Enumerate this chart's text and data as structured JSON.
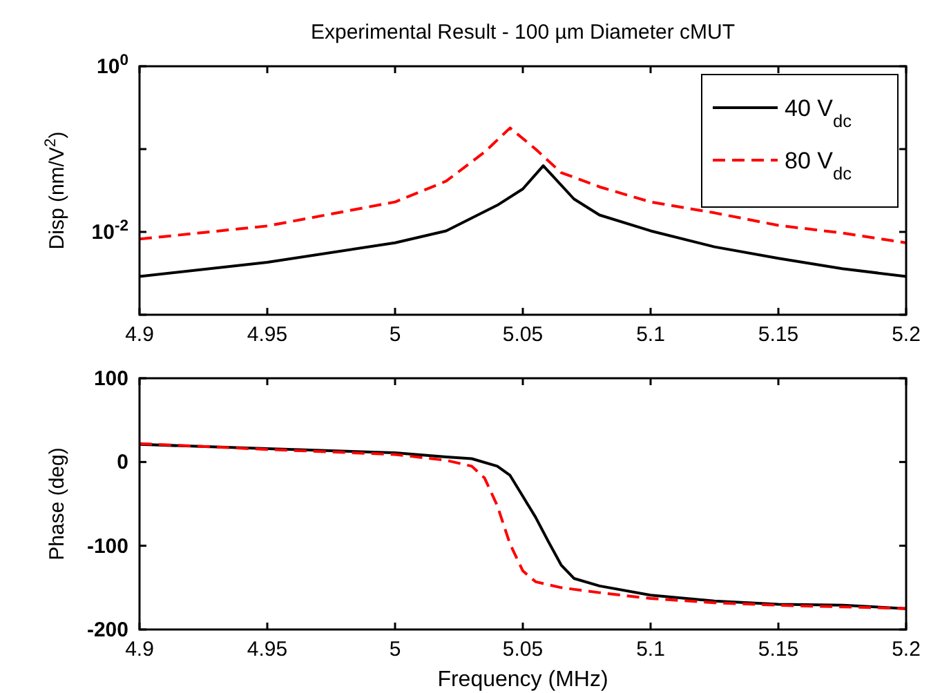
{
  "chart_data": [
    {
      "type": "line",
      "title": "Experimental Result - 100 µm Diameter cMUT",
      "ylabel": "Disp (nm/V$^{2}$)",
      "log": "y",
      "legend": "top right",
      "xlim": [
        4.9,
        5.2
      ],
      "xticks": [
        4.9,
        4.95,
        5,
        5.05,
        5.1,
        5.15,
        5.2
      ],
      "ylim": [
        0.001,
        1
      ],
      "yticks": [
        {
          "value": 1,
          "label": "10$^{0}$"
        },
        {
          "value": 0.1,
          "label": null
        },
        {
          "value": 0.01,
          "label": "10$^{-2}$"
        },
        {
          "value": 0.001,
          "label": null
        }
      ],
      "series": [
        {
          "name": "40 V$_{dc}$",
          "color": "#000000",
          "line_style": "solid",
          "x": [
            4.9,
            4.95,
            5.0,
            5.02,
            5.04,
            5.05,
            5.058,
            5.07,
            5.08,
            5.1,
            5.125,
            5.15,
            5.175,
            5.2
          ],
          "values": [
            0.0029,
            0.0043,
            0.0074,
            0.0103,
            0.021,
            0.033,
            0.063,
            0.025,
            0.016,
            0.0103,
            0.0066,
            0.0048,
            0.0036,
            0.0029
          ]
        },
        {
          "name": "80 V$_{dc}$",
          "color": "#ff0000",
          "line_style": "dashed",
          "x": [
            4.9,
            4.95,
            5.0,
            5.02,
            5.035,
            5.045,
            5.055,
            5.065,
            5.08,
            5.1,
            5.125,
            5.15,
            5.175,
            5.2
          ],
          "values": [
            0.0082,
            0.0118,
            0.023,
            0.041,
            0.092,
            0.18,
            0.1,
            0.052,
            0.035,
            0.023,
            0.017,
            0.012,
            0.0097,
            0.0074
          ]
        }
      ]
    },
    {
      "type": "line",
      "xlabel": "Frequency (MHz)",
      "ylabel": "Phase (deg)",
      "xlim": [
        4.9,
        5.2
      ],
      "xticks": [
        4.9,
        4.95,
        5,
        5.05,
        5.1,
        5.15,
        5.2
      ],
      "ylim": [
        -200,
        100
      ],
      "yticks": [
        -200,
        -100,
        0,
        100
      ],
      "series": [
        {
          "color": "#000000",
          "line_style": "solid",
          "x": [
            4.9,
            4.95,
            5.0,
            5.02,
            5.03,
            5.04,
            5.045,
            5.05,
            5.055,
            5.06,
            5.065,
            5.07,
            5.08,
            5.1,
            5.125,
            5.15,
            5.175,
            5.2
          ],
          "values": [
            21,
            16,
            11,
            6,
            4,
            -5,
            -16,
            -41,
            -66,
            -95,
            -123,
            -139,
            -148,
            -159,
            -166,
            -170,
            -171,
            -175
          ]
        },
        {
          "color": "#ff0000",
          "line_style": "dashed",
          "x": [
            4.9,
            4.95,
            5.0,
            5.02,
            5.03,
            5.035,
            5.04,
            5.045,
            5.05,
            5.055,
            5.065,
            5.08,
            5.1,
            5.125,
            5.15,
            5.175,
            5.2
          ],
          "values": [
            22,
            15,
            9,
            2,
            -5,
            -19,
            -52,
            -98,
            -130,
            -143,
            -150,
            -156,
            -163,
            -168,
            -171,
            -173,
            -175
          ]
        }
      ]
    }
  ]
}
